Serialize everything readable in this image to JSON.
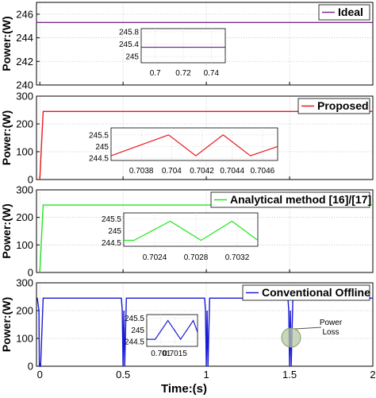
{
  "figure": {
    "xlabel": "Time:(s)",
    "x_ticks": [
      "0",
      "0.5",
      "1",
      "1.5",
      "2"
    ],
    "annotation": "Power\nLoss"
  },
  "chart_data": [
    {
      "type": "line",
      "name": "Ideal",
      "color": "#7b2c8c",
      "ylabel": "Power:(W)",
      "xlim": [
        -0.02,
        2.0
      ],
      "ylim": [
        240,
        247
      ],
      "y_ticks": [
        240,
        242,
        244,
        246
      ],
      "grid": true,
      "legend": "top-right",
      "series": [
        {
          "name": "Ideal",
          "x": [
            -0.02,
            2.0
          ],
          "y": [
            245.3,
            245.3
          ]
        }
      ],
      "inset": {
        "xlim": [
          0.69,
          0.75
        ],
        "ylim": [
          244.8,
          245.9
        ],
        "x_ticks": [
          "0.7",
          "0.72",
          "0.74"
        ],
        "y_ticks": [
          "245.8",
          "245.4",
          "245"
        ],
        "y_tick_values": [
          245.8,
          245.4,
          245
        ],
        "x_tick_values": [
          0.7,
          0.72,
          0.74
        ],
        "x": [
          0.69,
          0.75
        ],
        "y": [
          245.3,
          245.3
        ]
      }
    },
    {
      "type": "line",
      "name": "Proposed",
      "color": "#e8191e",
      "ylabel": "Power:(W)",
      "xlim": [
        -0.02,
        2.0
      ],
      "ylim": [
        0,
        300
      ],
      "y_ticks": [
        0,
        100,
        200,
        300
      ],
      "grid": true,
      "legend": "top-right",
      "series": [
        {
          "name": "Proposed",
          "x": [
            0,
            0.02,
            2.0
          ],
          "y": [
            0,
            245,
            245
          ]
        }
      ],
      "inset": {
        "xlim": [
          0.7036,
          0.7047
        ],
        "ylim": [
          244.4,
          245.8
        ],
        "x_ticks": [
          "0.7038",
          "0.704",
          "0.7042",
          "0.7044",
          "0.7046"
        ],
        "x_tick_values": [
          0.7038,
          0.704,
          0.7042,
          0.7044,
          0.7046
        ],
        "y_ticks": [
          "245.5",
          "245",
          "244.5"
        ],
        "y_tick_values": [
          245.5,
          245,
          244.5
        ],
        "x": [
          0.7036,
          0.70398,
          0.70416,
          0.70434,
          0.70452,
          0.7047
        ],
        "y": [
          244.6,
          245.5,
          244.6,
          245.5,
          244.6,
          245.0
        ]
      }
    },
    {
      "type": "line",
      "name": "Analytical method [16]/[17]",
      "color": "#22e61e",
      "ylabel": "Power:(W)",
      "xlim": [
        -0.02,
        2.0
      ],
      "ylim": [
        0,
        300
      ],
      "y_ticks": [
        0,
        100,
        200,
        300
      ],
      "grid": true,
      "legend": "top-right",
      "series": [
        {
          "name": "Analytical method [16]/[17]",
          "x": [
            0,
            0.02,
            2.0
          ],
          "y": [
            0,
            245,
            245
          ]
        }
      ],
      "inset": {
        "xlim": [
          0.7021,
          0.7034
        ],
        "ylim": [
          244.35,
          245.75
        ],
        "x_ticks": [
          "0.7024",
          "0.7028",
          "0.7032"
        ],
        "x_tick_values": [
          0.7024,
          0.7028,
          0.7032
        ],
        "y_ticks": [
          "245.5",
          "245",
          "244.5"
        ],
        "y_tick_values": [
          245.5,
          245,
          244.5
        ],
        "x": [
          0.7021,
          0.7022,
          0.70255,
          0.70285,
          0.70315,
          0.7034
        ],
        "y": [
          244.6,
          244.6,
          245.4,
          244.6,
          245.4,
          244.6
        ]
      }
    },
    {
      "type": "line",
      "name": "Conventional Offline",
      "color": "#1a1ad6",
      "ylabel": "Power:(W)",
      "xlim": [
        -0.02,
        2.0
      ],
      "ylim": [
        0,
        300
      ],
      "y_ticks": [
        0,
        100,
        200,
        300
      ],
      "grid": true,
      "legend": "top-right",
      "series": [
        {
          "name": "Conventional Offline",
          "x": [
            -0.02,
            -0.015,
            -0.005,
            -0.003,
            0.005,
            0.02,
            0.49,
            0.495,
            0.5,
            0.505,
            0.51,
            0.52,
            0.99,
            0.995,
            1.0,
            1.005,
            1.01,
            1.02,
            1.49,
            1.495,
            1.5,
            1.505,
            1.51,
            1.52,
            2.0
          ],
          "y": [
            245,
            245,
            200,
            0,
            0,
            245,
            245,
            200,
            0,
            200,
            0,
            245,
            245,
            200,
            0,
            200,
            0,
            245,
            245,
            200,
            0,
            200,
            0,
            245,
            245
          ]
        }
      ],
      "inset": {
        "xlim": [
          0.7005,
          0.7023
        ],
        "ylim": [
          244.3,
          245.65
        ],
        "x_ticks": [
          "0.701",
          "0.7015"
        ],
        "x_tick_values": [
          0.701,
          0.7015
        ],
        "y_ticks": [
          "245.5",
          "245",
          "244.5"
        ],
        "y_tick_values": [
          245.5,
          245,
          244.5
        ],
        "x": [
          0.7005,
          0.7008,
          0.70125,
          0.7017,
          0.70215,
          0.7023
        ],
        "y": [
          244.6,
          244.6,
          245.4,
          244.6,
          245.4,
          244.9
        ]
      }
    }
  ]
}
